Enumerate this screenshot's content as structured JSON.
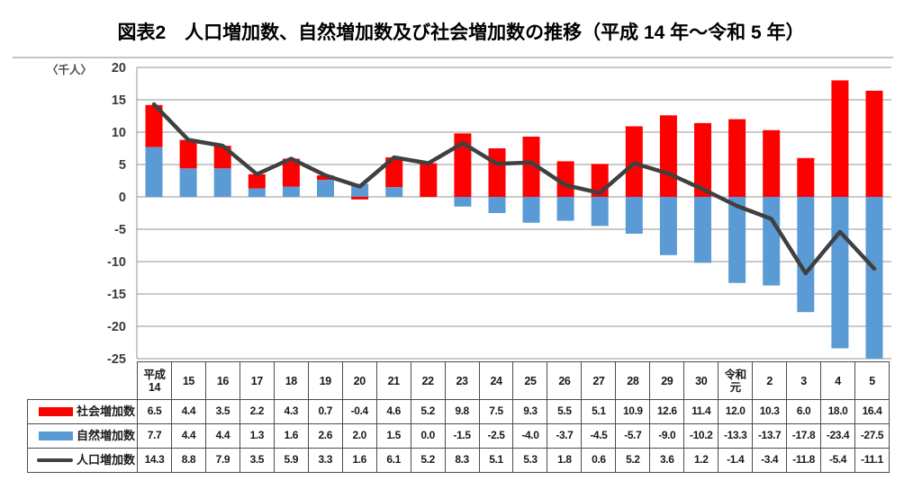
{
  "chart_data": {
    "type": "bar",
    "subtype": "stacked bars with line overlay",
    "title": "図表2　人口増加数、自然増加数及び社会増加数の推移（平成 14 年～令和 5 年）",
    "ylabel": "〈千人〉",
    "xlabel": "",
    "ylim": [
      -25,
      20
    ],
    "yticks": [
      20,
      15,
      10,
      5,
      0,
      -5,
      -10,
      -15,
      -20,
      -25
    ],
    "grid": true,
    "legend_position": "table-left",
    "categories": [
      "平成\n14",
      "15",
      "16",
      "17",
      "18",
      "19",
      "20",
      "21",
      "22",
      "23",
      "24",
      "25",
      "26",
      "27",
      "28",
      "29",
      "30",
      "令和\n元",
      "2",
      "3",
      "4",
      "5"
    ],
    "series": [
      {
        "name": "社会増加数",
        "key": "social-increase",
        "type": "bar",
        "color": "#FF0000",
        "values": [
          6.5,
          4.4,
          3.5,
          2.2,
          4.3,
          0.7,
          -0.4,
          4.6,
          5.2,
          9.8,
          7.5,
          9.3,
          5.5,
          5.1,
          10.9,
          12.6,
          11.4,
          12.0,
          10.3,
          6.0,
          18.0,
          16.4
        ]
      },
      {
        "name": "自然増加数",
        "key": "natural-increase",
        "type": "bar",
        "color": "#5B9BD5",
        "values": [
          7.7,
          4.4,
          4.4,
          1.3,
          1.6,
          2.6,
          2.0,
          1.5,
          0.0,
          -1.5,
          -2.5,
          -4.0,
          -3.7,
          -4.5,
          -5.7,
          -9.0,
          -10.2,
          -13.3,
          -13.7,
          -17.8,
          -23.4,
          -27.5
        ]
      },
      {
        "name": "人口増加数",
        "key": "population-increase",
        "type": "line",
        "color": "#404040",
        "values": [
          14.3,
          8.8,
          7.9,
          3.5,
          5.9,
          3.3,
          1.6,
          6.1,
          5.2,
          8.3,
          5.1,
          5.3,
          1.8,
          0.6,
          5.2,
          3.6,
          1.2,
          -1.4,
          -3.4,
          -11.8,
          -5.4,
          -11.1
        ]
      }
    ]
  }
}
